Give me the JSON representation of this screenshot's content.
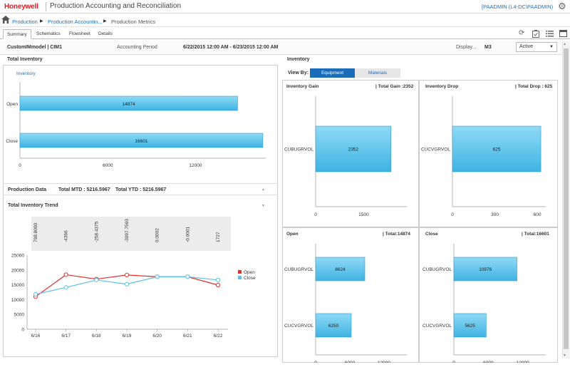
{
  "header": {
    "logo": "Honeywell",
    "app_title": "Production Accounting and Reconciliation",
    "user": "[PAADMIN (L4-DC\\PAADMIN)"
  },
  "breadcrumb": {
    "items": [
      "Production",
      "Production Accountin...",
      "Production Metrics"
    ]
  },
  "tabs": [
    "Summary",
    "Schematics",
    "Flowsheet",
    "Details"
  ],
  "filters": {
    "model": "CustomIMmodel | CIM1",
    "period_label": "Accounting Period",
    "period_value": "6/22/2015 12:00 AM - 6/23/2015 12:00 AM",
    "display_label": "Display...",
    "display_value": "M3",
    "status_value": "Active"
  },
  "total_inventory": {
    "title": "Total Inventory",
    "tab": "Inventory",
    "chart_data": {
      "type": "bar",
      "orientation": "horizontal",
      "categories": [
        "Open",
        "Close"
      ],
      "values": [
        14874,
        16601
      ],
      "ticks": [
        "0",
        "6000",
        "12000"
      ],
      "xlim": [
        0,
        16800
      ]
    }
  },
  "production_data": {
    "title": "Production Data",
    "mtd": "Total MTD : 5216.5967",
    "ytd": "Total YTD : 5216.5967"
  },
  "trend": {
    "title": "Total Inventory Trend",
    "diff_labels": [
      "798.8000",
      "-4366",
      "-258.4375",
      "-3097.7593",
      "0.0002",
      "-0.0001",
      "1727"
    ],
    "chart_data": {
      "type": "line",
      "x": [
        "6/16",
        "6/17",
        "6/18",
        "6/19",
        "6/20",
        "6/21",
        "6/22"
      ],
      "series": [
        {
          "name": "Open",
          "color": "#e03030",
          "values": [
            11000,
            18400,
            16900,
            18300,
            17700,
            17700,
            14900
          ]
        },
        {
          "name": "Close",
          "color": "#5bc0e8",
          "values": [
            11800,
            14100,
            16600,
            15200,
            17700,
            17700,
            16600
          ]
        }
      ],
      "ylim": [
        0,
        25000
      ],
      "yticks": [
        "0",
        "5000",
        "10000",
        "15000",
        "20000",
        "25000"
      ]
    }
  },
  "inventory": {
    "title": "Inventory",
    "view_by": "View By:",
    "btn_equipment": "Equipment",
    "btn_materials": "Materials",
    "quads": [
      {
        "title": "Inventory Gain",
        "total": "| Total Gain :2352",
        "chart_data": {
          "type": "bar",
          "orientation": "horizontal",
          "categories": [
            "CUBUGRVOL"
          ],
          "values": [
            2352
          ],
          "labels": [
            "2352"
          ],
          "ticks": [
            "0",
            "1500"
          ],
          "xlim": [
            0,
            2850
          ]
        }
      },
      {
        "title": "Inventory Drop",
        "total": "| Total Drop : 625",
        "chart_data": {
          "type": "bar",
          "orientation": "horizontal",
          "categories": [
            "CUCVGRVOL"
          ],
          "values": [
            625
          ],
          "labels": [
            "625"
          ],
          "ticks": [
            "0",
            "300",
            "600"
          ],
          "xlim": [
            0,
            660
          ]
        }
      },
      {
        "title": "Open",
        "total": "| Total:14874",
        "chart_data": {
          "type": "bar",
          "orientation": "horizontal",
          "categories": [
            "CUBUGRVOL",
            "CUCVGRVOL"
          ],
          "values": [
            8624,
            6250
          ],
          "labels": [
            "8624",
            "6250"
          ],
          "ticks": [
            "0",
            "6000",
            "12000"
          ],
          "xlim": [
            0,
            16000
          ]
        }
      },
      {
        "title": "Close",
        "total": "| Total:16601",
        "chart_data": {
          "type": "bar",
          "orientation": "horizontal",
          "categories": [
            "CUBUGRVOL",
            "CUCVGRVOL"
          ],
          "values": [
            10976,
            5625
          ],
          "labels": [
            "10976",
            "5625"
          ],
          "ticks": [
            "0",
            "6000",
            "12000"
          ],
          "xlim": [
            0,
            16000
          ]
        }
      }
    ]
  }
}
